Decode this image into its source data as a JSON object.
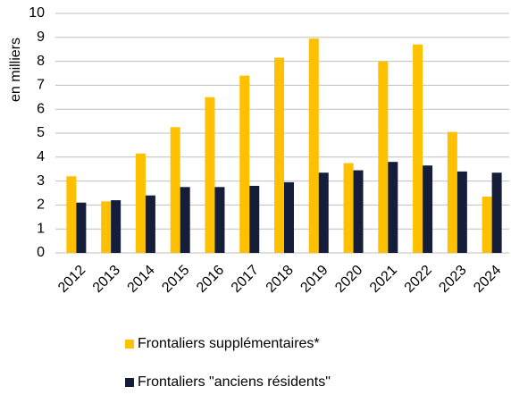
{
  "chart_data": {
    "type": "bar",
    "y_label": "en milliers",
    "categories": [
      "2012",
      "2013",
      "2014",
      "2015",
      "2016",
      "2017",
      "2018",
      "2019",
      "2020",
      "2021",
      "2022",
      "2023",
      "2024"
    ],
    "series": [
      {
        "name": "Frontaliers supplémentaires*",
        "color": "#ffc000",
        "values": [
          3.2,
          2.15,
          4.15,
          5.25,
          6.5,
          7.4,
          8.15,
          8.95,
          3.75,
          8.0,
          8.7,
          5.05,
          2.35
        ]
      },
      {
        "name": "Frontaliers \"anciens résidents\"",
        "color": "#141d3a",
        "values": [
          2.1,
          2.2,
          2.4,
          2.75,
          2.75,
          2.8,
          2.95,
          3.35,
          3.45,
          3.8,
          3.65,
          3.4,
          3.35
        ]
      }
    ],
    "ylim": [
      0,
      10
    ],
    "yticks": [
      0,
      1,
      2,
      3,
      4,
      5,
      6,
      7,
      8,
      9,
      10
    ],
    "grid": true,
    "legend": "bottom"
  }
}
